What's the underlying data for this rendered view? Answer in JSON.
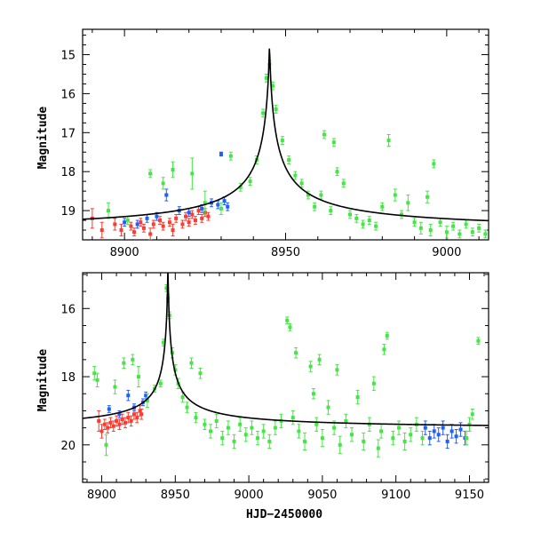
{
  "chart_data": [
    {
      "type": "scatter",
      "panel": "top",
      "title": "",
      "xlabel": "",
      "ylabel": "Magnitude",
      "xlim": [
        8887,
        9013
      ],
      "ylim": [
        19.75,
        14.35
      ],
      "x_ticks": [
        8900,
        8950,
        9000
      ],
      "y_ticks": [
        15,
        16,
        17,
        18,
        19
      ],
      "grid": false,
      "model_curve": {
        "t0": 8945,
        "base": 19.55,
        "amp": 4.9,
        "tau": 3,
        "color": "#000000"
      },
      "series": [
        {
          "name": "red",
          "color": "#ff3b2f",
          "points": [
            [
              8890,
              19.2,
              0.25
            ],
            [
              8893,
              19.5,
              0.2
            ],
            [
              8897,
              19.35,
              0.15
            ],
            [
              8899,
              19.5,
              0.15
            ],
            [
              8902,
              19.4,
              0.1
            ],
            [
              8903,
              19.55,
              0.1
            ],
            [
              8905,
              19.3,
              0.1
            ],
            [
              8906,
              19.45,
              0.1
            ],
            [
              8908,
              19.6,
              0.15
            ],
            [
              8909,
              19.35,
              0.1
            ],
            [
              8911,
              19.25,
              0.1
            ],
            [
              8912,
              19.4,
              0.1
            ],
            [
              8914,
              19.3,
              0.1
            ],
            [
              8915,
              19.5,
              0.15
            ],
            [
              8916,
              19.2,
              0.1
            ],
            [
              8918,
              19.35,
              0.1
            ],
            [
              8919,
              19.15,
              0.1
            ],
            [
              8920,
              19.3,
              0.1
            ],
            [
              8921,
              19.1,
              0.1
            ],
            [
              8922,
              19.25,
              0.1
            ],
            [
              8923,
              19.0,
              0.1
            ],
            [
              8924,
              19.2,
              0.1
            ],
            [
              8925,
              19.05,
              0.1
            ],
            [
              8926,
              19.15,
              0.1
            ]
          ]
        },
        {
          "name": "blue",
          "color": "#1f5fff",
          "points": [
            [
              8900,
              19.3,
              0.1
            ],
            [
              8904,
              19.35,
              0.1
            ],
            [
              8907,
              19.2,
              0.1
            ],
            [
              8910,
              19.15,
              0.1
            ],
            [
              8913,
              18.6,
              0.15
            ],
            [
              8917,
              19.0,
              0.1
            ],
            [
              8920,
              19.05,
              0.1
            ],
            [
              8924,
              18.95,
              0.1
            ],
            [
              8927,
              18.8,
              0.1
            ],
            [
              8929,
              18.85,
              0.1
            ],
            [
              8930,
              17.55,
              0.05
            ],
            [
              8931,
              18.75,
              0.1
            ],
            [
              8932,
              18.9,
              0.1
            ]
          ]
        },
        {
          "name": "green",
          "color": "#44e644",
          "points": [
            [
              8895,
              19.0,
              0.2
            ],
            [
              8901,
              19.25,
              0.1
            ],
            [
              8908,
              18.05,
              0.1
            ],
            [
              8912,
              18.3,
              0.15
            ],
            [
              8915,
              17.95,
              0.2
            ],
            [
              8921,
              18.05,
              0.4
            ],
            [
              8925,
              18.8,
              0.3
            ],
            [
              8930,
              18.95,
              0.15
            ],
            [
              8933,
              17.6,
              0.1
            ],
            [
              8936,
              18.4,
              0.1
            ],
            [
              8939,
              18.25,
              0.1
            ],
            [
              8941,
              17.7,
              0.1
            ],
            [
              8943,
              16.5,
              0.1
            ],
            [
              8944,
              15.6,
              0.1
            ],
            [
              8945,
              15.25,
              0.1
            ],
            [
              8946,
              15.8,
              0.1
            ],
            [
              8947,
              16.4,
              0.1
            ],
            [
              8949,
              17.2,
              0.1
            ],
            [
              8951,
              17.7,
              0.1
            ],
            [
              8953,
              18.1,
              0.1
            ],
            [
              8955,
              18.3,
              0.1
            ],
            [
              8957,
              18.6,
              0.1
            ],
            [
              8959,
              18.9,
              0.1
            ],
            [
              8961,
              18.6,
              0.1
            ],
            [
              8962,
              17.05,
              0.1
            ],
            [
              8964,
              19.0,
              0.1
            ],
            [
              8965,
              17.25,
              0.1
            ],
            [
              8966,
              18.0,
              0.1
            ],
            [
              8968,
              18.3,
              0.1
            ],
            [
              8970,
              19.1,
              0.1
            ],
            [
              8972,
              19.2,
              0.1
            ],
            [
              8974,
              19.35,
              0.1
            ],
            [
              8976,
              19.25,
              0.1
            ],
            [
              8978,
              19.4,
              0.1
            ],
            [
              8980,
              18.9,
              0.1
            ],
            [
              8982,
              17.2,
              0.15
            ],
            [
              8984,
              18.6,
              0.15
            ],
            [
              8986,
              19.1,
              0.1
            ],
            [
              8988,
              18.8,
              0.2
            ],
            [
              8990,
              19.3,
              0.1
            ],
            [
              8992,
              19.45,
              0.15
            ],
            [
              8994,
              18.65,
              0.15
            ],
            [
              8995,
              19.5,
              0.15
            ],
            [
              8996,
              17.8,
              0.1
            ],
            [
              8998,
              19.3,
              0.1
            ],
            [
              9000,
              19.55,
              0.15
            ],
            [
              9002,
              19.4,
              0.1
            ],
            [
              9004,
              19.6,
              0.1
            ],
            [
              9006,
              19.35,
              0.1
            ],
            [
              9008,
              19.55,
              0.1
            ],
            [
              9010,
              19.45,
              0.1
            ],
            [
              9012,
              19.6,
              0.1
            ]
          ]
        }
      ]
    },
    {
      "type": "scatter",
      "panel": "bottom",
      "title": "",
      "xlabel": "HJD−2450000",
      "ylabel": "Magnitude",
      "xlim": [
        8887,
        9163
      ],
      "ylim": [
        21.1,
        14.95
      ],
      "x_ticks": [
        8900,
        8950,
        9000,
        9050,
        9100,
        9150
      ],
      "y_ticks": [
        16,
        18,
        20
      ],
      "grid": false,
      "model_curve": {
        "t0": 8945,
        "base": 19.55,
        "amp": 4.9,
        "tau": 3,
        "color": "#000000"
      },
      "series": [
        {
          "name": "red",
          "color": "#ff3b2f",
          "points": [
            [
              8898,
              19.3,
              0.3
            ],
            [
              8900,
              19.6,
              0.2
            ],
            [
              8902,
              19.4,
              0.15
            ],
            [
              8904,
              19.5,
              0.15
            ],
            [
              8906,
              19.35,
              0.15
            ],
            [
              8908,
              19.45,
              0.15
            ],
            [
              8910,
              19.3,
              0.15
            ],
            [
              8912,
              19.4,
              0.15
            ],
            [
              8914,
              19.25,
              0.15
            ],
            [
              8916,
              19.35,
              0.15
            ],
            [
              8918,
              19.2,
              0.15
            ],
            [
              8920,
              19.3,
              0.15
            ],
            [
              8922,
              19.1,
              0.15
            ],
            [
              8924,
              19.2,
              0.15
            ],
            [
              8926,
              19.0,
              0.15
            ],
            [
              8927,
              19.1,
              0.15
            ]
          ]
        },
        {
          "name": "blue",
          "color": "#1f5fff",
          "points": [
            [
              8905,
              18.95,
              0.1
            ],
            [
              8912,
              19.1,
              0.1
            ],
            [
              8918,
              18.55,
              0.15
            ],
            [
              8922,
              18.9,
              0.1
            ],
            [
              8928,
              18.75,
              0.1
            ],
            [
              8930,
              18.55,
              0.1
            ],
            [
              9120,
              19.5,
              0.2
            ],
            [
              9123,
              19.8,
              0.2
            ],
            [
              9126,
              19.6,
              0.2
            ],
            [
              9129,
              19.7,
              0.2
            ],
            [
              9132,
              19.5,
              0.2
            ],
            [
              9135,
              19.9,
              0.2
            ],
            [
              9138,
              19.6,
              0.2
            ],
            [
              9141,
              19.75,
              0.2
            ],
            [
              9144,
              19.55,
              0.2
            ],
            [
              9147,
              19.8,
              0.2
            ]
          ]
        },
        {
          "name": "green",
          "color": "#44e644",
          "points": [
            [
              8895,
              17.9,
              0.2
            ],
            [
              8897,
              18.1,
              0.2
            ],
            [
              8903,
              20.0,
              0.3
            ],
            [
              8909,
              18.3,
              0.2
            ],
            [
              8915,
              17.6,
              0.15
            ],
            [
              8921,
              17.5,
              0.15
            ],
            [
              8925,
              18.0,
              0.3
            ],
            [
              8931,
              18.7,
              0.2
            ],
            [
              8936,
              18.35,
              0.1
            ],
            [
              8940,
              18.2,
              0.1
            ],
            [
              8942,
              17.0,
              0.1
            ],
            [
              8944,
              15.4,
              0.1
            ],
            [
              8945,
              15.7,
              0.1
            ],
            [
              8946,
              16.2,
              0.1
            ],
            [
              8948,
              17.3,
              0.15
            ],
            [
              8950,
              17.8,
              0.15
            ],
            [
              8952,
              18.2,
              0.15
            ],
            [
              8955,
              18.6,
              0.15
            ],
            [
              8958,
              18.9,
              0.15
            ],
            [
              8961,
              17.6,
              0.15
            ],
            [
              8964,
              19.2,
              0.15
            ],
            [
              8967,
              17.9,
              0.15
            ],
            [
              8970,
              19.4,
              0.15
            ],
            [
              8974,
              19.6,
              0.2
            ],
            [
              8978,
              19.3,
              0.2
            ],
            [
              8982,
              19.8,
              0.2
            ],
            [
              8986,
              19.5,
              0.2
            ],
            [
              8990,
              19.9,
              0.2
            ],
            [
              8994,
              19.4,
              0.2
            ],
            [
              8998,
              19.7,
              0.2
            ],
            [
              9002,
              19.5,
              0.2
            ],
            [
              9006,
              19.8,
              0.2
            ],
            [
              9010,
              19.6,
              0.2
            ],
            [
              9014,
              19.9,
              0.2
            ],
            [
              9018,
              19.5,
              0.2
            ],
            [
              9022,
              19.3,
              0.2
            ],
            [
              9026,
              16.35,
              0.1
            ],
            [
              9028,
              16.55,
              0.1
            ],
            [
              9030,
              19.2,
              0.2
            ],
            [
              9032,
              17.3,
              0.15
            ],
            [
              9034,
              19.6,
              0.2
            ],
            [
              9038,
              19.9,
              0.25
            ],
            [
              9042,
              17.7,
              0.15
            ],
            [
              9044,
              18.5,
              0.15
            ],
            [
              9046,
              19.4,
              0.2
            ],
            [
              9048,
              17.5,
              0.15
            ],
            [
              9050,
              19.8,
              0.25
            ],
            [
              9054,
              18.9,
              0.2
            ],
            [
              9058,
              19.5,
              0.2
            ],
            [
              9060,
              17.8,
              0.15
            ],
            [
              9062,
              20.0,
              0.25
            ],
            [
              9066,
              19.3,
              0.2
            ],
            [
              9070,
              19.7,
              0.2
            ],
            [
              9074,
              18.6,
              0.2
            ],
            [
              9078,
              19.9,
              0.25
            ],
            [
              9082,
              19.4,
              0.2
            ],
            [
              9085,
              18.2,
              0.2
            ],
            [
              9088,
              20.1,
              0.25
            ],
            [
              9090,
              19.6,
              0.2
            ],
            [
              9092,
              17.2,
              0.15
            ],
            [
              9094,
              16.8,
              0.1
            ],
            [
              9098,
              19.8,
              0.2
            ],
            [
              9102,
              19.5,
              0.2
            ],
            [
              9106,
              19.9,
              0.25
            ],
            [
              9110,
              19.7,
              0.2
            ],
            [
              9114,
              19.4,
              0.2
            ],
            [
              9118,
              19.8,
              0.2
            ],
            [
              9148,
              19.8,
              0.2
            ],
            [
              9150,
              19.4,
              0.2
            ],
            [
              9152,
              19.1,
              0.15
            ],
            [
              9156,
              16.95,
              0.1
            ]
          ]
        }
      ]
    }
  ]
}
